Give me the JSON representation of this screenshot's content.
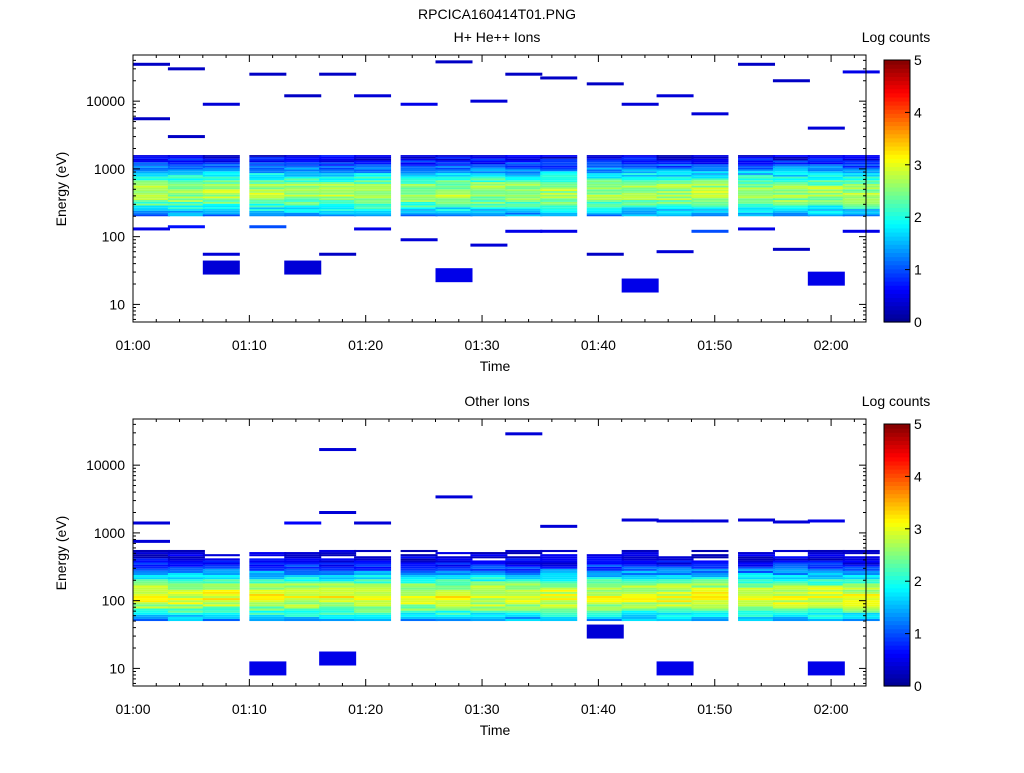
{
  "figure_title": "RPCICA160414T01.PNG",
  "colorbar_label": "Log counts",
  "colorbar_ticks": [
    "0",
    "1",
    "2",
    "3",
    "4",
    "5"
  ],
  "colorbar_palette": [
    "#00008f",
    "#0000ff",
    "#0080ff",
    "#00ffff",
    "#80ff80",
    "#ffff00",
    "#ff8000",
    "#ff0000",
    "#800000"
  ],
  "chart_data": [
    {
      "type": "heatmap",
      "title": "H+ He++ Ions",
      "xlabel": "Time",
      "ylabel": "Energy (eV)",
      "y_scale": "log",
      "ylim": [
        5.5,
        48000
      ],
      "xlim": [
        "01:00",
        "02:03"
      ],
      "x_tick_labels": [
        "01:00",
        "01:10",
        "01:20",
        "01:30",
        "01:40",
        "01:50",
        "02:00"
      ],
      "y_tick_labels": [
        "10",
        "100",
        "1000",
        "10000"
      ],
      "color_scale": "Log counts",
      "clim": [
        0,
        5
      ],
      "time_bins": [
        "01:00",
        "01:03",
        "01:06",
        "01:10",
        "01:13",
        "01:16",
        "01:19",
        "01:23",
        "01:26",
        "01:29",
        "01:32",
        "01:35",
        "01:39",
        "01:42",
        "01:45",
        "01:48",
        "01:52",
        "01:55",
        "01:58",
        "02:01"
      ],
      "band": {
        "peak_energy": 450,
        "peak_level": 2.7,
        "range_eV": [
          200,
          1600
        ]
      },
      "sparse_flux": [
        {
          "t": "01:00",
          "e": 35000,
          "v": 0.3
        },
        {
          "t": "01:00",
          "e": 5500,
          "v": 0.3
        },
        {
          "t": "01:00",
          "e": 130,
          "v": 0.5
        },
        {
          "t": "01:03",
          "e": 30000,
          "v": 0.3
        },
        {
          "t": "01:03",
          "e": 3000,
          "v": 0.3
        },
        {
          "t": "01:03",
          "e": 140,
          "v": 0.7
        },
        {
          "t": "01:06",
          "e": 9000,
          "v": 0.4
        },
        {
          "t": "01:06",
          "e": 55,
          "v": 0.4
        },
        {
          "t": "01:06",
          "e": 35,
          "v": 0.4
        },
        {
          "t": "01:10",
          "e": 25000,
          "v": 0.3
        },
        {
          "t": "01:10",
          "e": 140,
          "v": 1.0
        },
        {
          "t": "01:13",
          "e": 12000,
          "v": 0.3
        },
        {
          "t": "01:13",
          "e": 35,
          "v": 0.4
        },
        {
          "t": "01:16",
          "e": 25000,
          "v": 0.3
        },
        {
          "t": "01:16",
          "e": 55,
          "v": 0.3
        },
        {
          "t": "01:19",
          "e": 12000,
          "v": 0.4
        },
        {
          "t": "01:19",
          "e": 130,
          "v": 0.5
        },
        {
          "t": "01:23",
          "e": 9000,
          "v": 0.5
        },
        {
          "t": "01:23",
          "e": 90,
          "v": 0.4
        },
        {
          "t": "01:26",
          "e": 38000,
          "v": 0.3
        },
        {
          "t": "01:26",
          "e": 27,
          "v": 0.5
        },
        {
          "t": "01:29",
          "e": 10000,
          "v": 0.4
        },
        {
          "t": "01:29",
          "e": 75,
          "v": 0.4
        },
        {
          "t": "01:32",
          "e": 25000,
          "v": 0.3
        },
        {
          "t": "01:32",
          "e": 120,
          "v": 0.5
        },
        {
          "t": "01:35",
          "e": 22000,
          "v": 0.3
        },
        {
          "t": "01:35",
          "e": 120,
          "v": 0.5
        },
        {
          "t": "01:39",
          "e": 18000,
          "v": 0.3
        },
        {
          "t": "01:39",
          "e": 55,
          "v": 0.3
        },
        {
          "t": "01:42",
          "e": 9000,
          "v": 0.4
        },
        {
          "t": "01:42",
          "e": 19,
          "v": 0.5
        },
        {
          "t": "01:45",
          "e": 12000,
          "v": 0.4
        },
        {
          "t": "01:45",
          "e": 60,
          "v": 0.4
        },
        {
          "t": "01:48",
          "e": 6500,
          "v": 0.4
        },
        {
          "t": "01:48",
          "e": 120,
          "v": 1.0
        },
        {
          "t": "01:52",
          "e": 35000,
          "v": 0.3
        },
        {
          "t": "01:52",
          "e": 130,
          "v": 0.5
        },
        {
          "t": "01:55",
          "e": 20000,
          "v": 0.3
        },
        {
          "t": "01:55",
          "e": 65,
          "v": 0.3
        },
        {
          "t": "01:58",
          "e": 4000,
          "v": 0.4
        },
        {
          "t": "01:58",
          "e": 24,
          "v": 0.5
        },
        {
          "t": "02:01",
          "e": 27000,
          "v": 0.5
        },
        {
          "t": "02:01",
          "e": 120,
          "v": 0.5
        }
      ]
    },
    {
      "type": "heatmap",
      "title": "Other Ions",
      "xlabel": "Time",
      "ylabel": "Energy (eV)",
      "y_scale": "log",
      "ylim": [
        5.5,
        48000
      ],
      "xlim": [
        "01:00",
        "02:03"
      ],
      "x_tick_labels": [
        "01:00",
        "01:10",
        "01:20",
        "01:30",
        "01:40",
        "01:50",
        "02:00"
      ],
      "y_tick_labels": [
        "10",
        "100",
        "1000",
        "10000"
      ],
      "color_scale": "Log counts",
      "clim": [
        0,
        5
      ],
      "time_bins": [
        "01:00",
        "01:03",
        "01:06",
        "01:10",
        "01:13",
        "01:16",
        "01:19",
        "01:23",
        "01:26",
        "01:29",
        "01:32",
        "01:35",
        "01:39",
        "01:42",
        "01:45",
        "01:48",
        "01:52",
        "01:55",
        "01:58",
        "02:01"
      ],
      "band": {
        "peak_energy": 115,
        "peak_level": 3.0,
        "range_eV": [
          50,
          560
        ]
      },
      "sparse_flux": [
        {
          "t": "01:00",
          "e": 1400,
          "v": 0.4
        },
        {
          "t": "01:00",
          "e": 750,
          "v": 0.4
        },
        {
          "t": "01:10",
          "e": 10,
          "v": 0.5
        },
        {
          "t": "01:13",
          "e": 1400,
          "v": 0.6
        },
        {
          "t": "01:16",
          "e": 17000,
          "v": 0.4
        },
        {
          "t": "01:16",
          "e": 2000,
          "v": 0.4
        },
        {
          "t": "01:16",
          "e": 14,
          "v": 0.5
        },
        {
          "t": "01:19",
          "e": 1400,
          "v": 0.4
        },
        {
          "t": "01:26",
          "e": 3400,
          "v": 0.4
        },
        {
          "t": "01:32",
          "e": 29000,
          "v": 0.4
        },
        {
          "t": "01:35",
          "e": 1250,
          "v": 0.4
        },
        {
          "t": "01:39",
          "e": 35,
          "v": 0.4
        },
        {
          "t": "01:42",
          "e": 1550,
          "v": 0.4
        },
        {
          "t": "01:45",
          "e": 1500,
          "v": 0.4
        },
        {
          "t": "01:45",
          "e": 10,
          "v": 0.5
        },
        {
          "t": "01:48",
          "e": 1500,
          "v": 0.4
        },
        {
          "t": "01:52",
          "e": 1550,
          "v": 0.4
        },
        {
          "t": "01:55",
          "e": 1450,
          "v": 0.4
        },
        {
          "t": "01:58",
          "e": 1500,
          "v": 0.5
        },
        {
          "t": "01:58",
          "e": 10,
          "v": 0.5
        }
      ]
    }
  ]
}
